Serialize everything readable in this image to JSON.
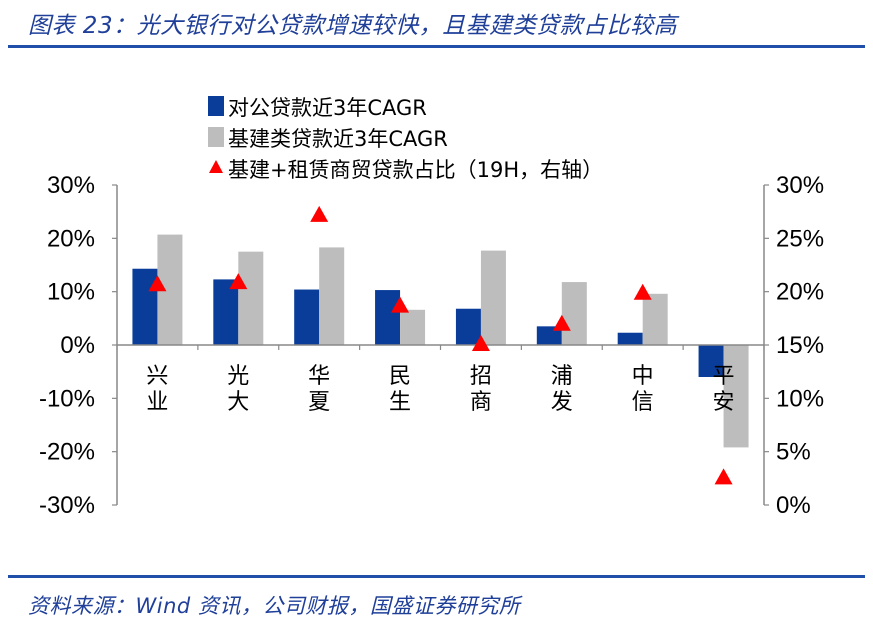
{
  "title": "图表 23：光大银行对公贷款增速较快，且基建类贷款占比较高",
  "source": "资料来源：Wind 资讯，公司财报，国盛证券研究所",
  "colors": {
    "corporate": "#0a3d9a",
    "infra": "#bdbdbd",
    "share": "#ff0000",
    "rule": "#1f4fa8",
    "title": "#1f3f99"
  },
  "chart_data": {
    "type": "bar",
    "categories": [
      "兴业",
      "光大",
      "华夏",
      "民生",
      "招商",
      "浦发",
      "中信",
      "平安"
    ],
    "category_lines": [
      [
        "兴",
        "业"
      ],
      [
        "光",
        "大"
      ],
      [
        "华",
        "夏"
      ],
      [
        "民",
        "生"
      ],
      [
        "招",
        "商"
      ],
      [
        "浦",
        "发"
      ],
      [
        "中",
        "信"
      ],
      [
        "平",
        "安"
      ]
    ],
    "series": [
      {
        "name": "对公贷款近3年CAGR",
        "kind": "bar",
        "axis": "left",
        "values": [
          14.3,
          12.3,
          10.4,
          10.3,
          6.8,
          3.5,
          2.3,
          -6.0
        ]
      },
      {
        "name": "基建类贷款近3年CAGR",
        "kind": "bar",
        "axis": "left",
        "values": [
          20.7,
          17.5,
          18.3,
          6.6,
          17.7,
          11.8,
          9.6,
          -19.2
        ]
      },
      {
        "name": "基建+租赁商贸贷款占比（19H，右轴）",
        "kind": "marker",
        "marker": "triangle",
        "axis": "right",
        "values": [
          20.6,
          20.8,
          27.1,
          18.6,
          15.0,
          16.9,
          19.8,
          2.5
        ]
      }
    ],
    "y_left": {
      "min": -30,
      "max": 30,
      "step": 10,
      "ticks": [
        "30%",
        "20%",
        "10%",
        "0%",
        "-10%",
        "-20%",
        "-30%"
      ]
    },
    "y_right": {
      "min": 0,
      "max": 30,
      "step": 5,
      "ticks": [
        "30%",
        "25%",
        "20%",
        "15%",
        "10%",
        "5%",
        "0%"
      ]
    },
    "grid": false,
    "legend_position": "top-left"
  }
}
